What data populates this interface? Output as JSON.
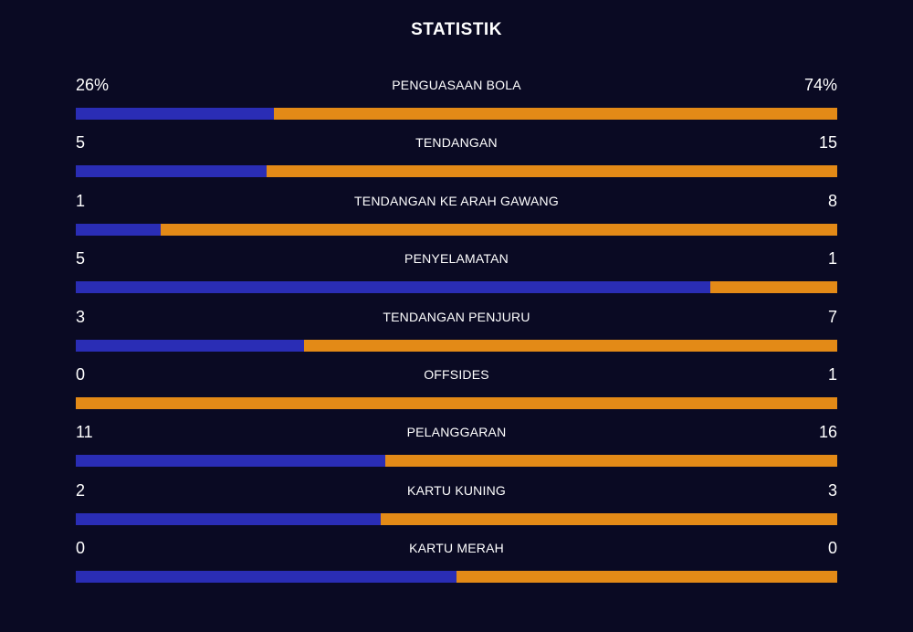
{
  "title": "STATISTIK",
  "colors": {
    "background": "#0a0a23",
    "home": "#2a2db5",
    "away": "#e38a17"
  },
  "stats": [
    {
      "label": "PENGUASAAN BOLA",
      "home": "26%",
      "away": "74%",
      "home_share": 0.26
    },
    {
      "label": "TENDANGAN",
      "home": "5",
      "away": "15",
      "home_share": 0.25
    },
    {
      "label": "TENDANGAN KE ARAH GAWANG",
      "home": "1",
      "away": "8",
      "home_share": 0.111
    },
    {
      "label": "PENYELAMATAN",
      "home": "5",
      "away": "1",
      "home_share": 0.833
    },
    {
      "label": "TENDANGAN PENJURU",
      "home": "3",
      "away": "7",
      "home_share": 0.3
    },
    {
      "label": "OFFSIDES",
      "home": "0",
      "away": "1",
      "home_share": 0
    },
    {
      "label": "PELANGGARAN",
      "home": "11",
      "away": "16",
      "home_share": 0.407
    },
    {
      "label": "KARTU KUNING",
      "home": "2",
      "away": "3",
      "home_share": 0.4
    },
    {
      "label": "KARTU MERAH",
      "home": "0",
      "away": "0",
      "home_share": 0.5
    }
  ]
}
